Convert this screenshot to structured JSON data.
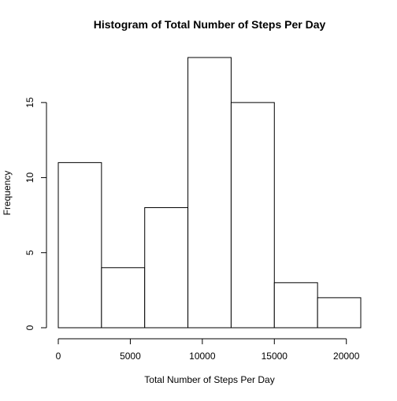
{
  "chart_data": {
    "type": "bar",
    "title": "Histogram of Total Number of Steps Per Day",
    "xlabel": "Total Number of Steps Per Day",
    "ylabel": "Frequency",
    "bins": [
      {
        "start": 0,
        "end": 3000,
        "count": 11
      },
      {
        "start": 3000,
        "end": 6000,
        "count": 4
      },
      {
        "start": 6000,
        "end": 9000,
        "count": 8
      },
      {
        "start": 9000,
        "end": 12000,
        "count": 18
      },
      {
        "start": 12000,
        "end": 15000,
        "count": 15
      },
      {
        "start": 15000,
        "end": 18000,
        "count": 3
      },
      {
        "start": 18000,
        "end": 21000,
        "count": 2
      }
    ],
    "xlim": [
      0,
      21000
    ],
    "ylim": [
      0,
      18
    ],
    "x_ticks": [
      0,
      5000,
      10000,
      15000,
      20000
    ],
    "x_tick_labels": [
      "0",
      "5000",
      "10000",
      "15000",
      "20000"
    ],
    "y_ticks": [
      0,
      5,
      10,
      15
    ],
    "y_tick_labels": [
      "0",
      "5",
      "10",
      "15"
    ],
    "bar_fill": "#ffffff",
    "bar_stroke": "#000000",
    "grid": false
  }
}
